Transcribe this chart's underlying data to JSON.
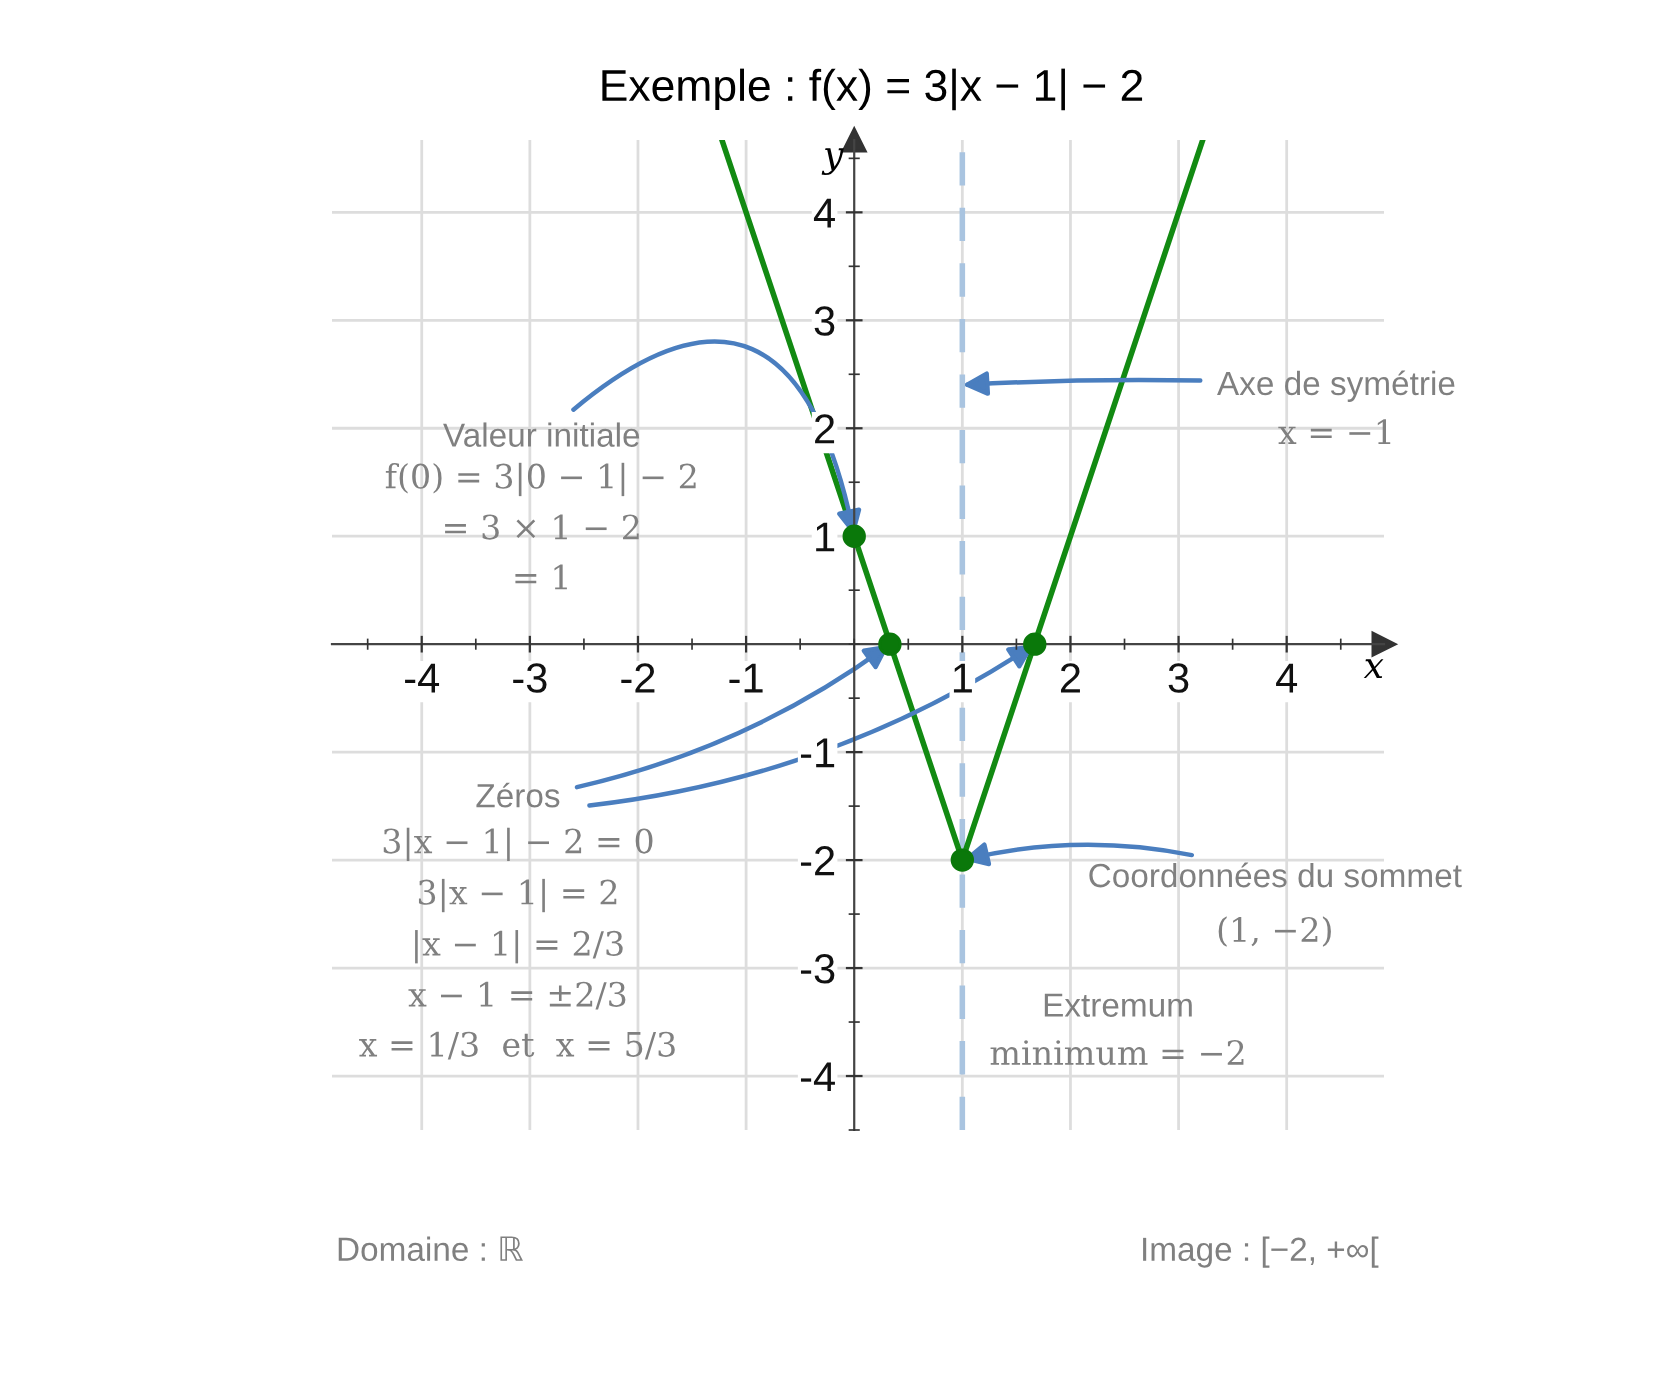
{
  "chart_data": {
    "type": "line",
    "title": "Exemple : f(x) = 3|x − 1| − 2",
    "xlabel": "x",
    "ylabel": "y",
    "series": [
      {
        "color": "#128a12",
        "x": [
          -1.22,
          1,
          3.22
        ],
        "values": [
          4.66,
          -2,
          4.66
        ],
        "marker": "none"
      },
      {
        "type": "scatter",
        "color": "#0a780a",
        "x": [
          0,
          0.33,
          1.67,
          1
        ],
        "values": [
          1,
          0,
          0,
          -2
        ],
        "marker": "circle"
      }
    ],
    "xlim": [
      -4.83,
      4.9
    ],
    "ylim": [
      -4.5,
      4.67
    ],
    "xticks": [
      -4,
      -3,
      -2,
      -1,
      1,
      2,
      3,
      4
    ],
    "yticks": [
      -4,
      -3,
      -2,
      -1,
      1,
      2,
      3,
      4
    ],
    "grid": true,
    "legend": false,
    "ref_lines": [
      {
        "axis": "x",
        "value": 1,
        "color": "#a9c4e0",
        "line_style": "dashed"
      }
    ],
    "annotations": [
      {
        "text": "Valeur initiale",
        "x": 0,
        "y": 1
      },
      "f(0) = 3|0 − 1| − 2\n= 3 × 1 − 2\n= 1",
      {
        "text": "Axe de symétrie",
        "x": 1,
        "y": 2.4
      },
      "x = −1",
      {
        "text": "Zéros",
        "x": 0.33,
        "y": 0
      },
      "3|x − 1| − 2 = 0\n3|x − 1| = 2\n|x − 1| = 2/3\nx − 1 = ±2/3\nx = 1/3  et  x = 5/3",
      {
        "text": "Coordonnées du sommet",
        "x": 1,
        "y": -2
      },
      "(1, −2)",
      "Extremum",
      "minimum = −2",
      "Domaine : ℝ",
      "Image : [−2, +∞["
    ]
  }
}
